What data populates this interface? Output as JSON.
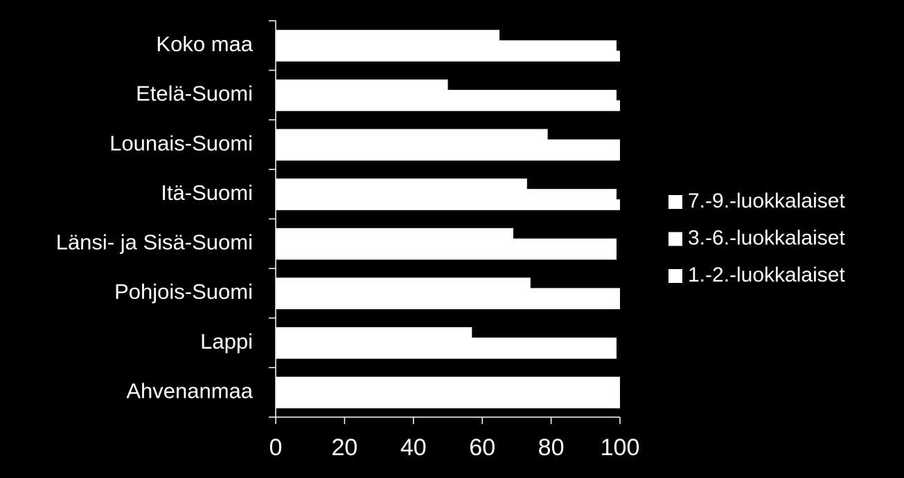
{
  "chart_data": {
    "type": "bar",
    "orientation": "horizontal",
    "categories": [
      "Koko maa",
      "Etelä-Suomi",
      "Lounais-Suomi",
      "Itä-Suomi",
      "Länsi- ja Sisä-Suomi",
      "Pohjois-Suomi",
      "Lappi",
      "Ahvenanmaa"
    ],
    "series": [
      {
        "name": "7.-9.-luokkalaiset",
        "color": "#ffffff",
        "values": [
          65,
          50,
          79,
          73,
          69,
          74,
          57,
          100
        ]
      },
      {
        "name": "3.-6.-luokkalaiset",
        "color": "#ffffff",
        "values": [
          99,
          99,
          100,
          99,
          99,
          100,
          99,
          100
        ]
      },
      {
        "name": "1.-2.-luokkalaiset",
        "color": "#ffffff",
        "values": [
          100,
          100,
          100,
          100,
          99,
          100,
          99,
          100
        ]
      }
    ],
    "xlim": [
      0,
      100
    ],
    "xticks": [
      0,
      20,
      40,
      60,
      80,
      100
    ],
    "legend": "right"
  }
}
